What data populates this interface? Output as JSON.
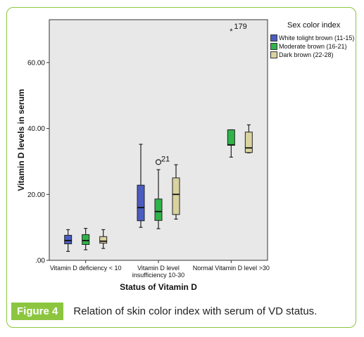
{
  "chart_data": {
    "type": "boxplot",
    "ylabel": "Vitamin D levels in serum",
    "xlabel": "Status of Vitamin D",
    "y_ticks": [
      ".00",
      "20.00",
      "40.00",
      "60.00"
    ],
    "y_tick_values": [
      0,
      20,
      40,
      60
    ],
    "ylim": [
      0,
      73
    ],
    "categories": [
      "Vitamin D deficiency < 10",
      "Vitamin D level insufficiency 10-30",
      "Normal Vitamin D level >30"
    ],
    "category_label_lines": [
      [
        "Vitamin D deficiency < 10"
      ],
      [
        "Vitamin D level",
        "insufficiency 10-30"
      ],
      [
        "Normal Vitamin D level >30"
      ]
    ],
    "legend_title": "Sex color index",
    "legend_position": "top-right, outside plot",
    "background": "#e8e8e8",
    "series": [
      {
        "name": "White tolight brown (11-15)",
        "color": "#4a5cc0",
        "boxes": [
          {
            "min": 2.7,
            "q1": 5.0,
            "median": 6.0,
            "q3": 7.6,
            "max": 9.3
          },
          {
            "min": 10.0,
            "q1": 12.0,
            "median": 16.0,
            "q3": 22.8,
            "max": 35.2
          },
          null
        ]
      },
      {
        "name": "Moderate brown (16-21)",
        "color": "#2fb34a",
        "boxes": [
          {
            "min": 3.2,
            "q1": 4.8,
            "median": 6.0,
            "q3": 7.8,
            "max": 9.7
          },
          {
            "min": 9.6,
            "q1": 12.1,
            "median": 14.8,
            "q3": 18.6,
            "max": 27.5
          },
          {
            "min": 31.3,
            "q1": 34.9,
            "median": 35.0,
            "q3": 39.6,
            "max": 39.6
          }
        ]
      },
      {
        "name": "Dark brown (22-28)",
        "color": "#d9d3a0",
        "boxes": [
          {
            "min": 3.6,
            "q1": 5.2,
            "median": 5.8,
            "q3": 7.2,
            "max": 9.3
          },
          {
            "min": 12.5,
            "q1": 13.9,
            "median": 20.0,
            "q3": 25.0,
            "max": 29.0
          },
          {
            "min": 32.6,
            "q1": 32.7,
            "median": 34.1,
            "q3": 38.9,
            "max": 41.1
          }
        ]
      }
    ],
    "outliers": [
      {
        "series": 1,
        "category": 1,
        "value": 29.8,
        "label": "21",
        "marker": "circle"
      },
      {
        "series": 1,
        "category": 2,
        "value": 70.0,
        "label": "179",
        "marker": "star"
      }
    ]
  },
  "caption": {
    "label": "Figure 4",
    "text": "Relation of skin color index with serum of VD status."
  }
}
